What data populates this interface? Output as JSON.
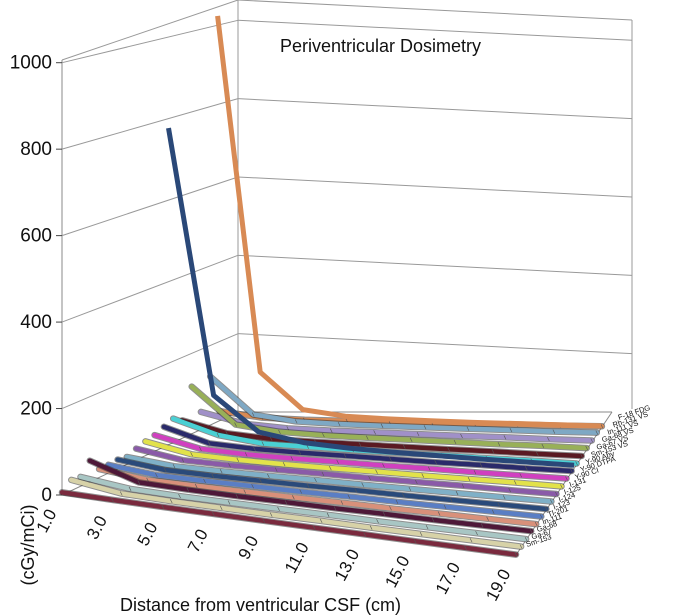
{
  "chart_data": {
    "type": "line",
    "subtype": "3d-ribbon",
    "title": "Periventricular Dosimetry",
    "xlabel": "Distance from ventricular CSF (cm)",
    "ylabel": "(cGy/mCi)",
    "ylim": [
      0,
      1000
    ],
    "yticks": [
      "0",
      "200",
      "400",
      "600",
      "800",
      "1000"
    ],
    "x": [
      "1.0",
      "3.0",
      "5.0",
      "7.0",
      "9.0",
      "11.0",
      "13.0",
      "15.0",
      "17.0",
      "19.0"
    ],
    "grid": true,
    "series": [
      {
        "name": "Sm-153",
        "color": "#7a2a3e",
        "values": [
          6,
          4,
          3,
          2.5,
          2,
          1.5,
          1.5,
          1,
          1,
          1
        ]
      },
      {
        "name": "Ga-67",
        "color": "#d7d2a8",
        "values": [
          25,
          8,
          5,
          4,
          3,
          3,
          2,
          2,
          2,
          2
        ]
      },
      {
        "name": "Ga-68",
        "color": "#a8c6c4",
        "values": [
          22,
          8,
          5,
          4,
          3,
          3,
          2,
          2,
          2,
          2
        ]
      },
      {
        "name": "In-111",
        "color": "#4e1838",
        "values": [
          50,
          12,
          8,
          6,
          5,
          4,
          4,
          3,
          3,
          3
        ]
      },
      {
        "name": "Tl-201",
        "color": "#d8907a",
        "values": [
          20,
          7,
          5,
          4,
          3,
          3,
          2,
          2,
          2,
          2
        ]
      },
      {
        "name": "I-123",
        "color": "#5a7ec4",
        "values": [
          20,
          7,
          5,
          4,
          3,
          3,
          2,
          2,
          2,
          2
        ]
      },
      {
        "name": "I-124",
        "color": "#2a4a7a",
        "values": [
          22,
          8,
          5,
          4,
          3,
          3,
          2,
          2,
          2,
          2
        ]
      },
      {
        "name": "I-125",
        "color": "#7fb0c7",
        "values": [
          18,
          6,
          4,
          3,
          3,
          2,
          2,
          2,
          2,
          2
        ]
      },
      {
        "name": "I-131",
        "color": "#8a5aa8",
        "values": [
          28,
          9,
          6,
          5,
          4,
          3,
          3,
          3,
          2,
          2
        ]
      },
      {
        "name": "Y-90 CI",
        "color": "#e2e24a",
        "values": [
          35,
          12,
          7,
          5,
          4,
          4,
          3,
          3,
          3,
          2
        ]
      },
      {
        "name": "Y-90 DTPA",
        "color": "#d040c0",
        "values": [
          40,
          14,
          8,
          6,
          5,
          4,
          4,
          3,
          3,
          3
        ]
      },
      {
        "name": "Y-90 Aby",
        "color": "#2a2a6a",
        "values": [
          50,
          16,
          9,
          7,
          6,
          5,
          4,
          4,
          3,
          3
        ]
      },
      {
        "name": "Sm-153 VS",
        "color": "#4ad0d4",
        "values": [
          60,
          25,
          10,
          8,
          6,
          5,
          5,
          4,
          4,
          3
        ]
      },
      {
        "name": "Ga-67 VS",
        "color": "#5a1a22",
        "values": [
          45,
          18,
          9,
          7,
          6,
          5,
          4,
          4,
          3,
          3
        ]
      },
      {
        "name": "Ga-68 VS",
        "color": "#98b058",
        "values": [
          120,
          28,
          14,
          10,
          8,
          7,
          6,
          5,
          5,
          4
        ]
      },
      {
        "name": "In-111 VS",
        "color": "#a090c8",
        "values": [
          45,
          18,
          10,
          8,
          7,
          6,
          5,
          5,
          4,
          4
        ]
      },
      {
        "name": "Rh-131 VS",
        "color": "#7ea8c4",
        "values": [
          125,
          30,
          15,
          11,
          9,
          8,
          7,
          6,
          5,
          5
        ]
      },
      {
        "name": "F-18 FDG",
        "color": "#d88a54",
        "values": [
          25,
          10,
          6,
          5,
          4,
          3,
          3,
          3,
          2,
          2
        ]
      }
    ]
  },
  "aux_series": [
    {
      "name": "large-peak-orange",
      "color": "#d88a54",
      "values": [
        1050,
        130,
        35,
        20,
        15,
        12,
        10,
        9,
        8,
        7
      ]
    },
    {
      "name": "large-peak-blue",
      "color": "#2a4878",
      "values": [
        790,
        130,
        45,
        25,
        18,
        14,
        12,
        10,
        9,
        8
      ]
    }
  ],
  "z_label_strings": [
    "F-18 FDG",
    "Rh-131 VS",
    "In-111 VS",
    "Ga-68 VS",
    "Ga-67 VS",
    "Sm-153 VS",
    "Y-90 Aby",
    "Y-90 DTPA",
    "Y-90 CI",
    "I-131",
    "I-125",
    "I-124",
    "I-123",
    "Tl-201",
    "In-111",
    "Ga-68",
    "Ga-67",
    "Sm-153"
  ]
}
